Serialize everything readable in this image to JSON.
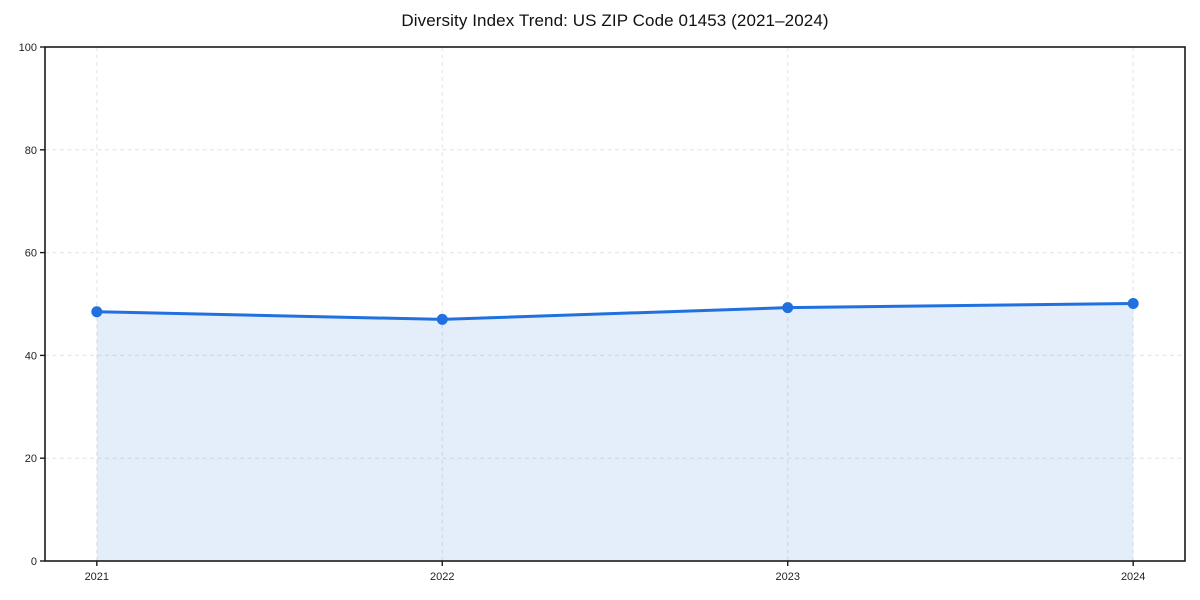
{
  "chart_data": {
    "type": "line",
    "title": "Diversity Index Trend: US ZIP Code 01453 (2021–2024)",
    "categories": [
      "2021",
      "2022",
      "2023",
      "2024"
    ],
    "series": [
      {
        "name": "Diversity Index",
        "values": [
          48.5,
          47.0,
          49.3,
          50.1
        ]
      }
    ],
    "xlabel": "",
    "ylabel": "",
    "ylim": [
      0,
      100
    ],
    "yticks": [
      0,
      20,
      40,
      60,
      80,
      100
    ],
    "grid": true,
    "grid_style": "dashed",
    "legend_position": "none",
    "area_fill": true,
    "marker": "circle",
    "colors": {
      "line": "#2170df",
      "fill": "rgba(33,112,223,0.12)",
      "grid": "#e3e3e3",
      "axis": "#1a1a1a",
      "tick_label": "#1f1f1f",
      "background": "#ffffff"
    }
  }
}
